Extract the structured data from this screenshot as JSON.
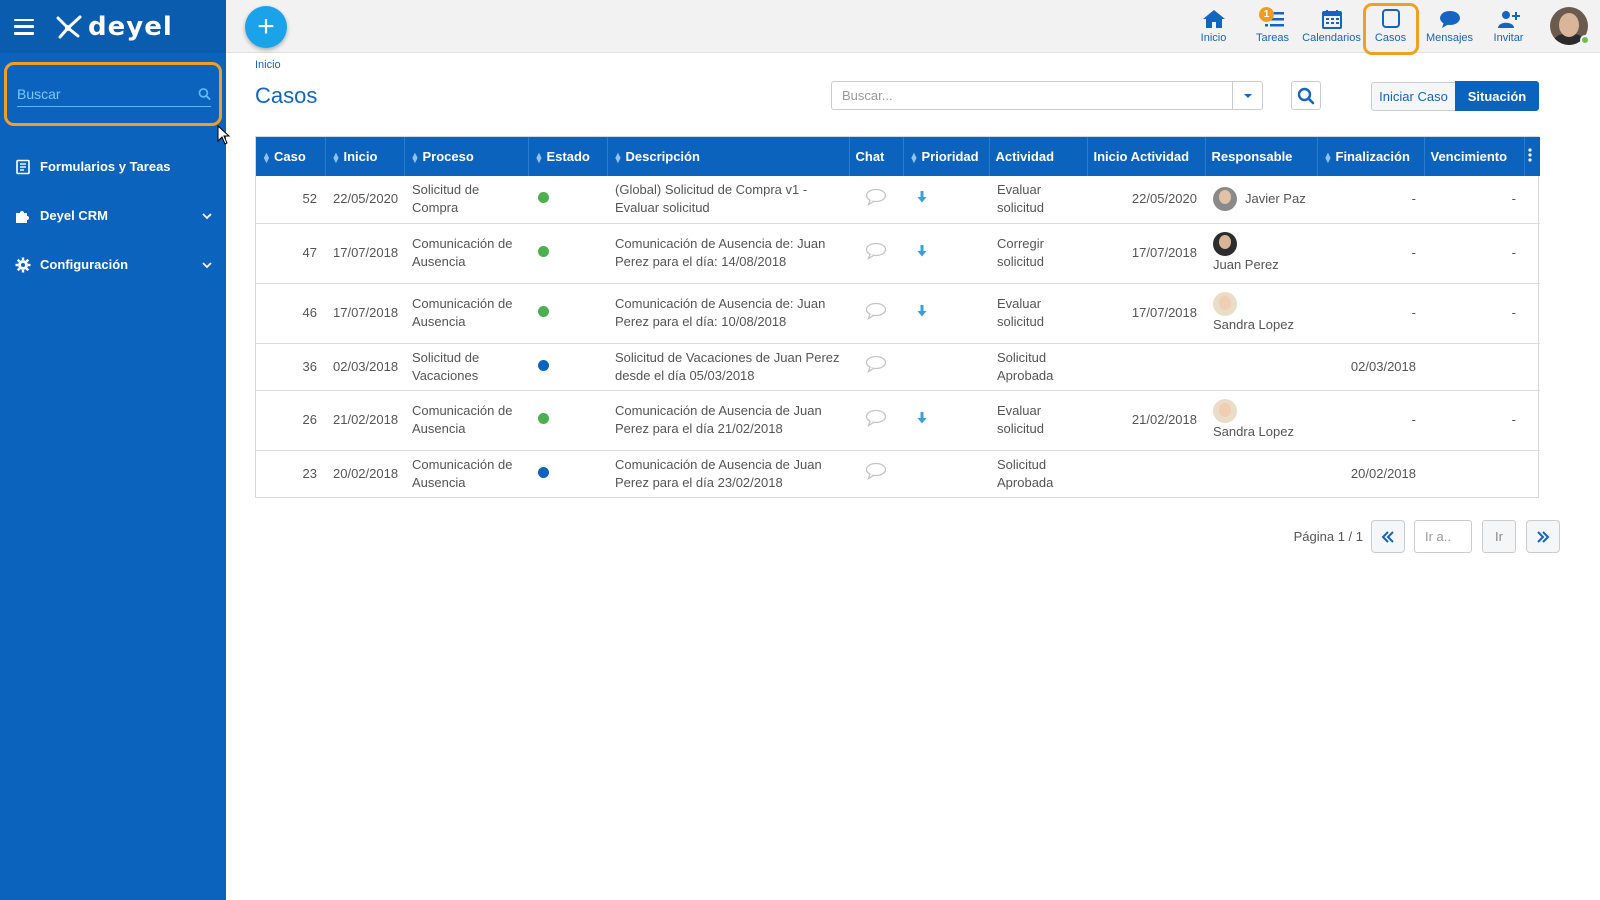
{
  "sidebar": {
    "logo_text": "deyel",
    "search_placeholder": "Buscar",
    "items": [
      {
        "label": "Formularios y Tareas",
        "icon": "form-icon",
        "expandable": false
      },
      {
        "label": "Deyel CRM",
        "icon": "puzzle-icon",
        "expandable": true
      },
      {
        "label": "Configuración",
        "icon": "gear-icon",
        "expandable": true
      }
    ]
  },
  "topbar": {
    "nav": [
      {
        "label": "Inicio",
        "icon": "home-icon"
      },
      {
        "label": "Tareas",
        "icon": "tasks-icon",
        "badge": "1"
      },
      {
        "label": "Calendarios",
        "icon": "calendar-icon"
      },
      {
        "label": "Casos",
        "icon": "cases-icon",
        "active": true
      },
      {
        "label": "Mensajes",
        "icon": "chat-bubble-icon"
      },
      {
        "label": "Invitar",
        "icon": "invite-user-icon"
      }
    ]
  },
  "main": {
    "breadcrumb": "Inicio",
    "title": "Casos",
    "search_placeholder": "Buscar...",
    "iniciar_label": "Iniciar Caso",
    "situacion_label": "Situación"
  },
  "table": {
    "columns": [
      "Caso",
      "Inicio",
      "Proceso",
      "Estado",
      "Descripción",
      "Chat",
      "Prioridad",
      "Actividad",
      "Inicio Actividad",
      "Responsable",
      "Finalización",
      "Vencimiento"
    ],
    "rows": [
      {
        "caso": "52",
        "inicio": "22/05/2020",
        "proceso": "Solicitud de Compra",
        "estado": "green",
        "descripcion": "(Global) Solicitud de Compra v1 - Evaluar solicitud",
        "prioridad": "low",
        "actividad": "Evaluar solicitud",
        "inicio_actividad": "22/05/2020",
        "responsable": "Javier Paz",
        "avatar": "m",
        "finalizacion": "-",
        "vencimiento": "-"
      },
      {
        "caso": "47",
        "inicio": "17/07/2018",
        "proceso": "Comunicación de Ausencia",
        "estado": "green",
        "descripcion": "Comunicación de Ausencia de: Juan Perez para el día: 14/08/2018",
        "prioridad": "low",
        "actividad": "Corregir solicitud",
        "inicio_actividad": "17/07/2018",
        "responsable": "Juan Perez",
        "avatar": "d",
        "finalizacion": "-",
        "vencimiento": "-"
      },
      {
        "caso": "46",
        "inicio": "17/07/2018",
        "proceso": "Comunicación de Ausencia",
        "estado": "green",
        "descripcion": "Comunicación de Ausencia de: Juan Perez para el día: 10/08/2018",
        "prioridad": "low",
        "actividad": "Evaluar solicitud",
        "inicio_actividad": "17/07/2018",
        "responsable": "Sandra Lopez",
        "avatar": "f",
        "finalizacion": "-",
        "vencimiento": "-"
      },
      {
        "caso": "36",
        "inicio": "02/03/2018",
        "proceso": "Solicitud de Vacaciones",
        "estado": "blue",
        "descripcion": "Solicitud de Vacaciones de Juan  Perez desde el día 05/03/2018",
        "prioridad": "",
        "actividad": "Solicitud Aprobada",
        "inicio_actividad": "",
        "responsable": "",
        "avatar": "",
        "finalizacion": "02/03/2018",
        "vencimiento": ""
      },
      {
        "caso": "26",
        "inicio": "21/02/2018",
        "proceso": "Comunicación de Ausencia",
        "estado": "green",
        "descripcion": "Comunicación de Ausencia de Juan Perez para el día 21/02/2018",
        "prioridad": "low",
        "actividad": "Evaluar solicitud",
        "inicio_actividad": "21/02/2018",
        "responsable": "Sandra Lopez",
        "avatar": "f",
        "finalizacion": "-",
        "vencimiento": "-"
      },
      {
        "caso": "23",
        "inicio": "20/02/2018",
        "proceso": "Comunicación de Ausencia",
        "estado": "blue",
        "descripcion": "Comunicación de Ausencia de Juan Perez para el día 23/02/2018",
        "prioridad": "",
        "actividad": "Solicitud Aprobada",
        "inicio_actividad": "",
        "responsable": "",
        "avatar": "",
        "finalizacion": "20/02/2018",
        "vencimiento": ""
      }
    ]
  },
  "pager": {
    "label": "Página 1 / 1",
    "goto_placeholder": "Ir a..",
    "go_label": "Ir"
  },
  "colors": {
    "primary": "#0b63bd",
    "accent": "#1aa3e8",
    "highlight": "#f0a020",
    "status_green": "#4caf50",
    "status_blue": "#0b63bd"
  }
}
